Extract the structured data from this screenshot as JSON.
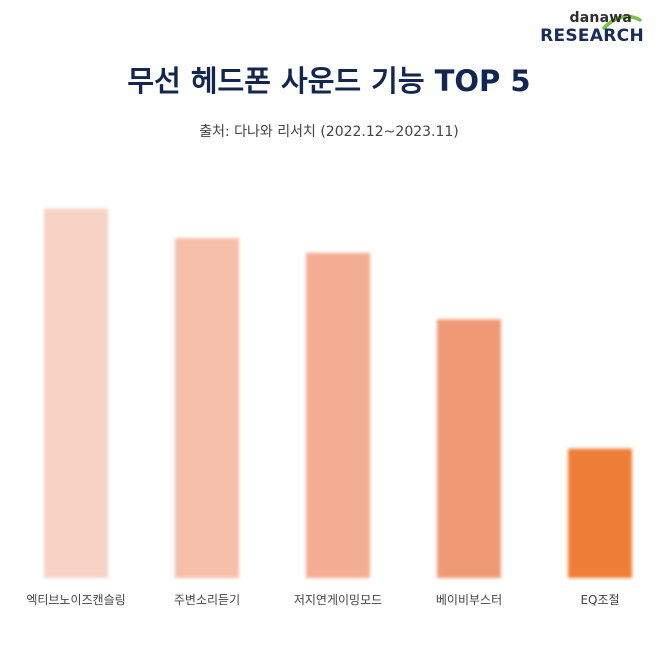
{
  "brand": {
    "top": "danawa",
    "bottom": "RESEARCH",
    "accent_color": "#7cc243"
  },
  "source_text": "출처: 다나와 리서치 (2022.12~2023.11)",
  "colors": {
    "bars": [
      "#f7d3c6",
      "#f5bfaa",
      "#f3ad92",
      "#f09a74",
      "#ef7f38"
    ]
  },
  "chart_data": {
    "type": "bar",
    "title": "무선 헤드폰 사운드 기능 TOP 5",
    "categories": [
      "엑티브노이즈캔슬링",
      "주변소리듣기",
      "저지연게이밍모드",
      "베이비부스터",
      "EQ조절"
    ],
    "values": [
      100,
      92,
      88,
      70,
      35
    ],
    "ylim": [
      0,
      105
    ],
    "grid": false,
    "legend": "none"
  }
}
